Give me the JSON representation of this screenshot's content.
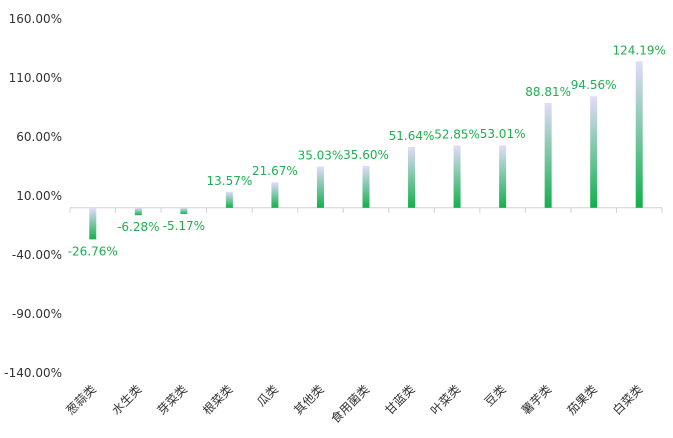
{
  "colors": {
    "label": "#1fae50",
    "bar_bottom": "#11b04b",
    "bar_top": "#e2dcfb",
    "axis": "#d0d0d0",
    "text": "#333333"
  },
  "chart_data": {
    "type": "bar",
    "title": "",
    "xlabel": "",
    "ylabel": "",
    "ylim": [
      -140,
      160
    ],
    "yticks": [
      160,
      110,
      60,
      10,
      -40,
      -90,
      -140
    ],
    "ytick_labels": [
      "160.00%",
      "110.00%",
      "60.00%",
      "10.00%",
      "-40.00%",
      "-90.00%",
      "-140.00%"
    ],
    "grid": false,
    "legend": "none",
    "baseline": 0,
    "categories": [
      "葱蒜类",
      "水生类",
      "芽菜类",
      "根菜类",
      "瓜类",
      "其他类",
      "食用菌类",
      "甘蓝类",
      "叶菜类",
      "豆类",
      "薯芋类",
      "茄果类",
      "白菜类"
    ],
    "values": [
      -26.76,
      -6.28,
      -5.17,
      13.57,
      21.67,
      35.03,
      35.6,
      51.64,
      52.85,
      53.01,
      88.81,
      94.56,
      124.19
    ],
    "value_labels": [
      "-26.76%",
      "-6.28%",
      "-5.17%",
      "13.57%",
      "21.67%",
      "35.03%",
      "35.60%",
      "51.64%",
      "52.85%",
      "53.01%",
      "88.81%",
      "94.56%",
      "124.19%"
    ]
  }
}
